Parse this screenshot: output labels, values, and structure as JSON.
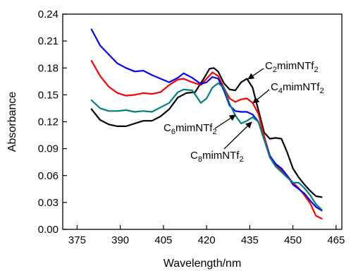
{
  "chart_data": {
    "type": "line",
    "xlabel": "Wavelength/nm",
    "ylabel": "Absorbance",
    "xlim": [
      370,
      467
    ],
    "ylim": [
      0.0,
      0.24
    ],
    "xticks": [
      375,
      390,
      405,
      420,
      435,
      450,
      465
    ],
    "xtick_labels": [
      "375",
      "390",
      "405",
      "420",
      "435",
      "450",
      "465"
    ],
    "yticks": [
      0.0,
      0.03,
      0.06,
      0.09,
      0.12,
      0.15,
      0.18,
      0.21,
      0.24
    ],
    "ytick_labels": [
      "0.00",
      "0.03",
      "0.06",
      "0.09",
      "0.12",
      "0.15",
      "0.18",
      "0.21",
      "0.24"
    ],
    "grid": false,
    "legend": "none",
    "series": [
      {
        "name": "C2mimNTf2",
        "color": "#000000",
        "x": [
          380,
          383,
          386,
          389,
          392,
          395,
          398,
          401,
          404,
          407,
          410,
          413,
          416,
          419,
          421,
          422.5,
          424,
          426,
          428,
          430,
          432,
          434,
          436,
          438,
          440,
          442,
          444,
          446,
          448,
          450,
          452,
          454,
          456,
          458,
          460
        ],
        "y": [
          0.134,
          0.122,
          0.117,
          0.115,
          0.115,
          0.118,
          0.121,
          0.121,
          0.126,
          0.134,
          0.147,
          0.152,
          0.153,
          0.168,
          0.179,
          0.18,
          0.176,
          0.163,
          0.156,
          0.155,
          0.164,
          0.168,
          0.158,
          0.133,
          0.108,
          0.101,
          0.102,
          0.101,
          0.086,
          0.068,
          0.058,
          0.05,
          0.043,
          0.037,
          0.036
        ]
      },
      {
        "name": "C4mimNTf2",
        "color": "#ff0000",
        "x": [
          380,
          383,
          386,
          389,
          392,
          395,
          398,
          401,
          404,
          407,
          410,
          412,
          415,
          418,
          420,
          422,
          424,
          426,
          428,
          430,
          432,
          434,
          436,
          438,
          440,
          442,
          444,
          446,
          448,
          450,
          452,
          454,
          456,
          458,
          460
        ],
        "y": [
          0.188,
          0.171,
          0.159,
          0.152,
          0.149,
          0.15,
          0.152,
          0.151,
          0.153,
          0.161,
          0.167,
          0.168,
          0.164,
          0.161,
          0.168,
          0.175,
          0.171,
          0.158,
          0.146,
          0.142,
          0.145,
          0.146,
          0.141,
          0.129,
          0.104,
          0.082,
          0.071,
          0.066,
          0.06,
          0.052,
          0.046,
          0.038,
          0.029,
          0.015,
          0.012
        ]
      },
      {
        "name": "C6mimNTf2",
        "color": "#0000ff",
        "x": [
          380,
          383,
          386,
          389,
          392,
          395,
          398,
          401,
          404,
          407,
          410,
          412,
          415,
          418,
          420,
          422,
          424,
          426,
          428,
          430,
          432,
          434,
          436,
          438,
          440,
          442,
          444,
          446,
          448,
          450,
          452,
          454,
          456,
          458,
          460
        ],
        "y": [
          0.223,
          0.205,
          0.195,
          0.185,
          0.18,
          0.176,
          0.177,
          0.172,
          0.168,
          0.164,
          0.169,
          0.174,
          0.169,
          0.162,
          0.164,
          0.17,
          0.168,
          0.155,
          0.138,
          0.132,
          0.131,
          0.131,
          0.128,
          0.12,
          0.1,
          0.082,
          0.073,
          0.068,
          0.06,
          0.05,
          0.045,
          0.04,
          0.032,
          0.025,
          0.021
        ]
      },
      {
        "name": "C8mimNTf2",
        "color": "#008080",
        "x": [
          380,
          383,
          386,
          389,
          392,
          395,
          398,
          401,
          404,
          407,
          410,
          412,
          415,
          418,
          420,
          422,
          424,
          426,
          428,
          430,
          432,
          434,
          436,
          438,
          440,
          442,
          444,
          446,
          448,
          450,
          452,
          454,
          456,
          458,
          460
        ],
        "y": [
          0.144,
          0.135,
          0.132,
          0.132,
          0.133,
          0.131,
          0.132,
          0.131,
          0.136,
          0.141,
          0.153,
          0.156,
          0.155,
          0.141,
          0.146,
          0.158,
          0.163,
          0.158,
          0.14,
          0.127,
          0.118,
          0.121,
          0.125,
          0.12,
          0.1,
          0.08,
          0.07,
          0.064,
          0.058,
          0.052,
          0.052,
          0.046,
          0.038,
          0.028,
          0.022
        ]
      }
    ],
    "annotations": [
      {
        "base": "C",
        "sub": "2",
        "rest": "mimNTf",
        "sub2": "2",
        "series": "C2mimNTf2",
        "tip_x": 434,
        "tip_y": 0.168
      },
      {
        "base": "C",
        "sub": "4",
        "rest": "mimNTf",
        "sub2": "2",
        "series": "C4mimNTf2",
        "tip_x": 435.5,
        "tip_y": 0.142
      },
      {
        "base": "C",
        "sub": "6",
        "rest": "mimNTf",
        "sub2": "2",
        "series": "C6mimNTf2",
        "tip_x": 433,
        "tip_y": 0.131
      },
      {
        "base": "C",
        "sub": "8",
        "rest": "mimNTf",
        "sub2": "2",
        "series": "C8mimNTf2",
        "tip_x": 436.5,
        "tip_y": 0.123
      }
    ]
  }
}
